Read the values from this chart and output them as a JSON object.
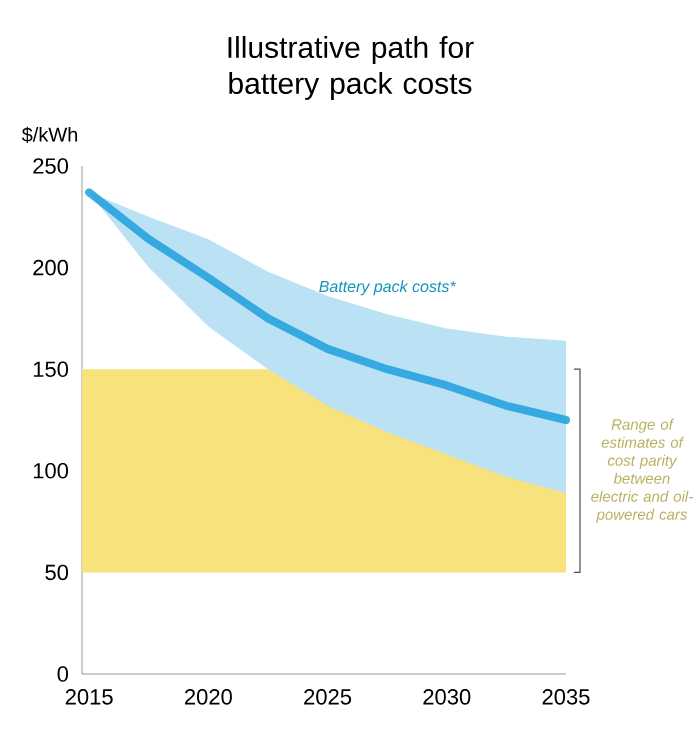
{
  "chart_data": {
    "type": "line",
    "title": "Illustrative path for battery pack costs",
    "ylabel": "$/kWh",
    "x": [
      2015,
      2017.5,
      2020,
      2022.5,
      2025,
      2027.5,
      2030,
      2032.5,
      2035
    ],
    "series": [
      {
        "name": "Battery pack costs*",
        "color": "#1ea0dc",
        "values": [
          237,
          214,
          195,
          175,
          160,
          150,
          142,
          132,
          125
        ],
        "lower": [
          237,
          200,
          171,
          150,
          132,
          119,
          108,
          97,
          89
        ],
        "upper": [
          237,
          225,
          214,
          198,
          186,
          177,
          170,
          166,
          164
        ]
      }
    ],
    "bands": [
      {
        "axis": "y",
        "from": 50,
        "to": 150,
        "label": "Range of estimates of cost parity between electric and oil-powered cars",
        "color": "#f8e27c"
      }
    ],
    "xlim": [
      2014.7,
      2035
    ],
    "ylim": [
      0,
      250
    ],
    "xticks": [
      2015,
      2020,
      2025,
      2030,
      2035
    ],
    "yticks": [
      0,
      50,
      100,
      150,
      200,
      250
    ]
  }
}
